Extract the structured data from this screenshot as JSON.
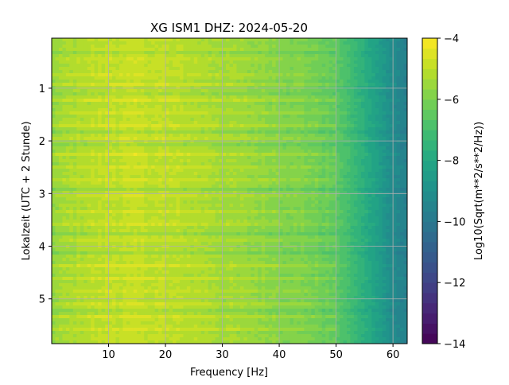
{
  "chart_data": {
    "type": "heatmap",
    "title": "XG ISM1  DHZ: 2024-05-20",
    "xlabel": "Frequency [Hz]",
    "ylabel": "Lokalzeit (UTC + 2 Stunde)",
    "colorbar_label": "Log10(Sqrt(m**2/s**2/Hz))",
    "xlim": [
      0,
      62.5
    ],
    "ylim": [
      5.85,
      0.05
    ],
    "y_inverted": true,
    "xticks": [
      10,
      20,
      30,
      40,
      50,
      60
    ],
    "xtick_labels": [
      "10",
      "20",
      "30",
      "40",
      "50",
      "60"
    ],
    "yticks": [
      1,
      2,
      3,
      4,
      5
    ],
    "ytick_labels": [
      "1",
      "2",
      "3",
      "4",
      "5"
    ],
    "grid": true,
    "colorbar": {
      "min": -14,
      "max": -4,
      "ticks": [
        -14,
        -12,
        -10,
        -8,
        -6,
        -4
      ],
      "tick_labels": [
        "−14",
        "−12",
        "−10",
        "−8",
        "−6",
        "−4"
      ],
      "levels": 30,
      "colormap": "viridis"
    },
    "frequency_profile": {
      "frequency_hz": [
        0,
        5,
        10,
        15,
        20,
        25,
        30,
        35,
        40,
        45,
        50,
        52,
        54,
        56,
        58,
        60,
        62.5
      ],
      "log10_amplitude": [
        -5.6,
        -5.2,
        -5.0,
        -4.95,
        -5.05,
        -5.2,
        -5.4,
        -5.6,
        -5.8,
        -6.0,
        -6.5,
        -7.0,
        -7.5,
        -8.0,
        -8.6,
        -9.2,
        -9.7
      ]
    },
    "bright_time_bands_hour": [
      0.45,
      0.72,
      0.95,
      1.2,
      1.45,
      1.72,
      1.95,
      2.28,
      2.52,
      2.74,
      3.05,
      3.35,
      3.6,
      3.9,
      4.35,
      4.6,
      4.85,
      5.1,
      5.35,
      5.6
    ],
    "dark_time_bands_hour": [
      0.3,
      1.1,
      1.85,
      2.1,
      2.9,
      3.75,
      4.15,
      5.2
    ]
  }
}
